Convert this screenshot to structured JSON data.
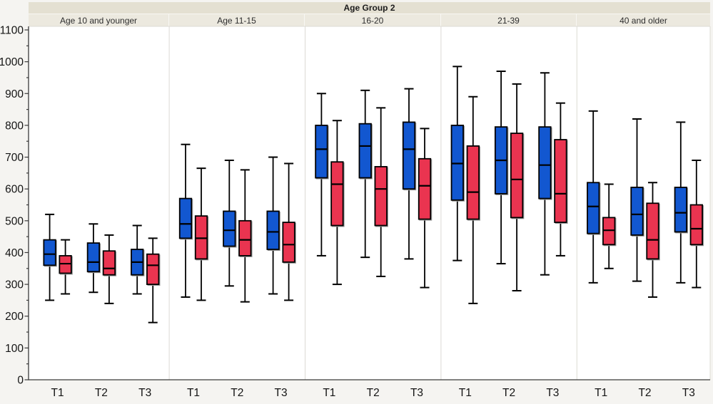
{
  "header": {
    "title": "Age Group 2",
    "panel_labels": [
      "Age 10 and younger",
      "Age 11-15",
      "16-20",
      "21-39",
      "40 and older"
    ]
  },
  "colors": {
    "series_blue": "#1257d0",
    "series_red": "#ea3450",
    "box_outline": "#000000",
    "box_shadow": "#9a9a9a",
    "axis_line": "#3a3a3a",
    "panel_divider": "#dcdad4",
    "plot_border_light": "#dedbd4",
    "plot_bg": "#ffffff",
    "band1_bg": "#e4e0d2",
    "band2_bg": "#ece9df",
    "page_bg": "#f5f4f1"
  },
  "chart_data": {
    "type": "boxplot",
    "title": "Age Group 2",
    "panel_labels": [
      "Age 10 and younger",
      "Age 11-15",
      "16-20",
      "21-39",
      "40 and older"
    ],
    "x_categories": [
      "T1",
      "T2",
      "T3"
    ],
    "ylim": [
      0,
      1100
    ],
    "y_ticks": [
      0,
      100,
      200,
      300,
      400,
      500,
      600,
      700,
      800,
      900,
      1000,
      1100
    ],
    "y_minor_step": 50,
    "grid": false,
    "legend": "none",
    "series": [
      {
        "id": "s1",
        "name": "series-blue",
        "color": "#1257d0"
      },
      {
        "id": "s2",
        "name": "series-red",
        "color": "#ea3450"
      }
    ],
    "groups": [
      {
        "label": "Age 10 and younger",
        "boxes": [
          {
            "x": "T1",
            "s1": {
              "min": 250,
              "q1": 360,
              "median": 395,
              "q3": 440,
              "max": 520
            },
            "s2": {
              "min": 270,
              "q1": 335,
              "median": 365,
              "q3": 390,
              "max": 440
            }
          },
          {
            "x": "T2",
            "s1": {
              "min": 275,
              "q1": 340,
              "median": 370,
              "q3": 430,
              "max": 490
            },
            "s2": {
              "min": 240,
              "q1": 330,
              "median": 350,
              "q3": 405,
              "max": 455
            }
          },
          {
            "x": "T3",
            "s1": {
              "min": 270,
              "q1": 330,
              "median": 370,
              "q3": 410,
              "max": 485
            },
            "s2": {
              "min": 180,
              "q1": 300,
              "median": 360,
              "q3": 395,
              "max": 445
            }
          }
        ]
      },
      {
        "label": "Age 11-15",
        "boxes": [
          {
            "x": "T1",
            "s1": {
              "min": 260,
              "q1": 445,
              "median": 490,
              "q3": 570,
              "max": 740
            },
            "s2": {
              "min": 250,
              "q1": 380,
              "median": 445,
              "q3": 515,
              "max": 665
            }
          },
          {
            "x": "T2",
            "s1": {
              "min": 295,
              "q1": 420,
              "median": 470,
              "q3": 530,
              "max": 690
            },
            "s2": {
              "min": 245,
              "q1": 390,
              "median": 440,
              "q3": 500,
              "max": 660
            }
          },
          {
            "x": "T3",
            "s1": {
              "min": 270,
              "q1": 410,
              "median": 465,
              "q3": 530,
              "max": 700
            },
            "s2": {
              "min": 250,
              "q1": 370,
              "median": 425,
              "q3": 495,
              "max": 680
            }
          }
        ]
      },
      {
        "label": "16-20",
        "boxes": [
          {
            "x": "T1",
            "s1": {
              "min": 390,
              "q1": 635,
              "median": 725,
              "q3": 800,
              "max": 900
            },
            "s2": {
              "min": 300,
              "q1": 485,
              "median": 615,
              "q3": 685,
              "max": 815
            }
          },
          {
            "x": "T2",
            "s1": {
              "min": 385,
              "q1": 635,
              "median": 735,
              "q3": 805,
              "max": 910
            },
            "s2": {
              "min": 325,
              "q1": 485,
              "median": 600,
              "q3": 670,
              "max": 855
            }
          },
          {
            "x": "T3",
            "s1": {
              "min": 380,
              "q1": 600,
              "median": 725,
              "q3": 810,
              "max": 915
            },
            "s2": {
              "min": 290,
              "q1": 505,
              "median": 610,
              "q3": 695,
              "max": 790
            }
          }
        ]
      },
      {
        "label": "21-39",
        "boxes": [
          {
            "x": "T1",
            "s1": {
              "min": 375,
              "q1": 565,
              "median": 680,
              "q3": 800,
              "max": 985
            },
            "s2": {
              "min": 240,
              "q1": 505,
              "median": 590,
              "q3": 735,
              "max": 890
            }
          },
          {
            "x": "T2",
            "s1": {
              "min": 365,
              "q1": 585,
              "median": 690,
              "q3": 795,
              "max": 970
            },
            "s2": {
              "min": 280,
              "q1": 510,
              "median": 630,
              "q3": 775,
              "max": 930
            }
          },
          {
            "x": "T3",
            "s1": {
              "min": 330,
              "q1": 570,
              "median": 675,
              "q3": 795,
              "max": 965
            },
            "s2": {
              "min": 390,
              "q1": 495,
              "median": 585,
              "q3": 755,
              "max": 870
            }
          }
        ]
      },
      {
        "label": "40 and older",
        "boxes": [
          {
            "x": "T1",
            "s1": {
              "min": 305,
              "q1": 460,
              "median": 545,
              "q3": 620,
              "max": 845
            },
            "s2": {
              "min": 350,
              "q1": 425,
              "median": 470,
              "q3": 510,
              "max": 615
            }
          },
          {
            "x": "T2",
            "s1": {
              "min": 310,
              "q1": 455,
              "median": 520,
              "q3": 605,
              "max": 820
            },
            "s2": {
              "min": 260,
              "q1": 380,
              "median": 440,
              "q3": 555,
              "max": 620
            }
          },
          {
            "x": "T3",
            "s1": {
              "min": 305,
              "q1": 465,
              "median": 525,
              "q3": 605,
              "max": 810
            },
            "s2": {
              "min": 290,
              "q1": 425,
              "median": 475,
              "q3": 550,
              "max": 690
            }
          }
        ]
      }
    ]
  }
}
